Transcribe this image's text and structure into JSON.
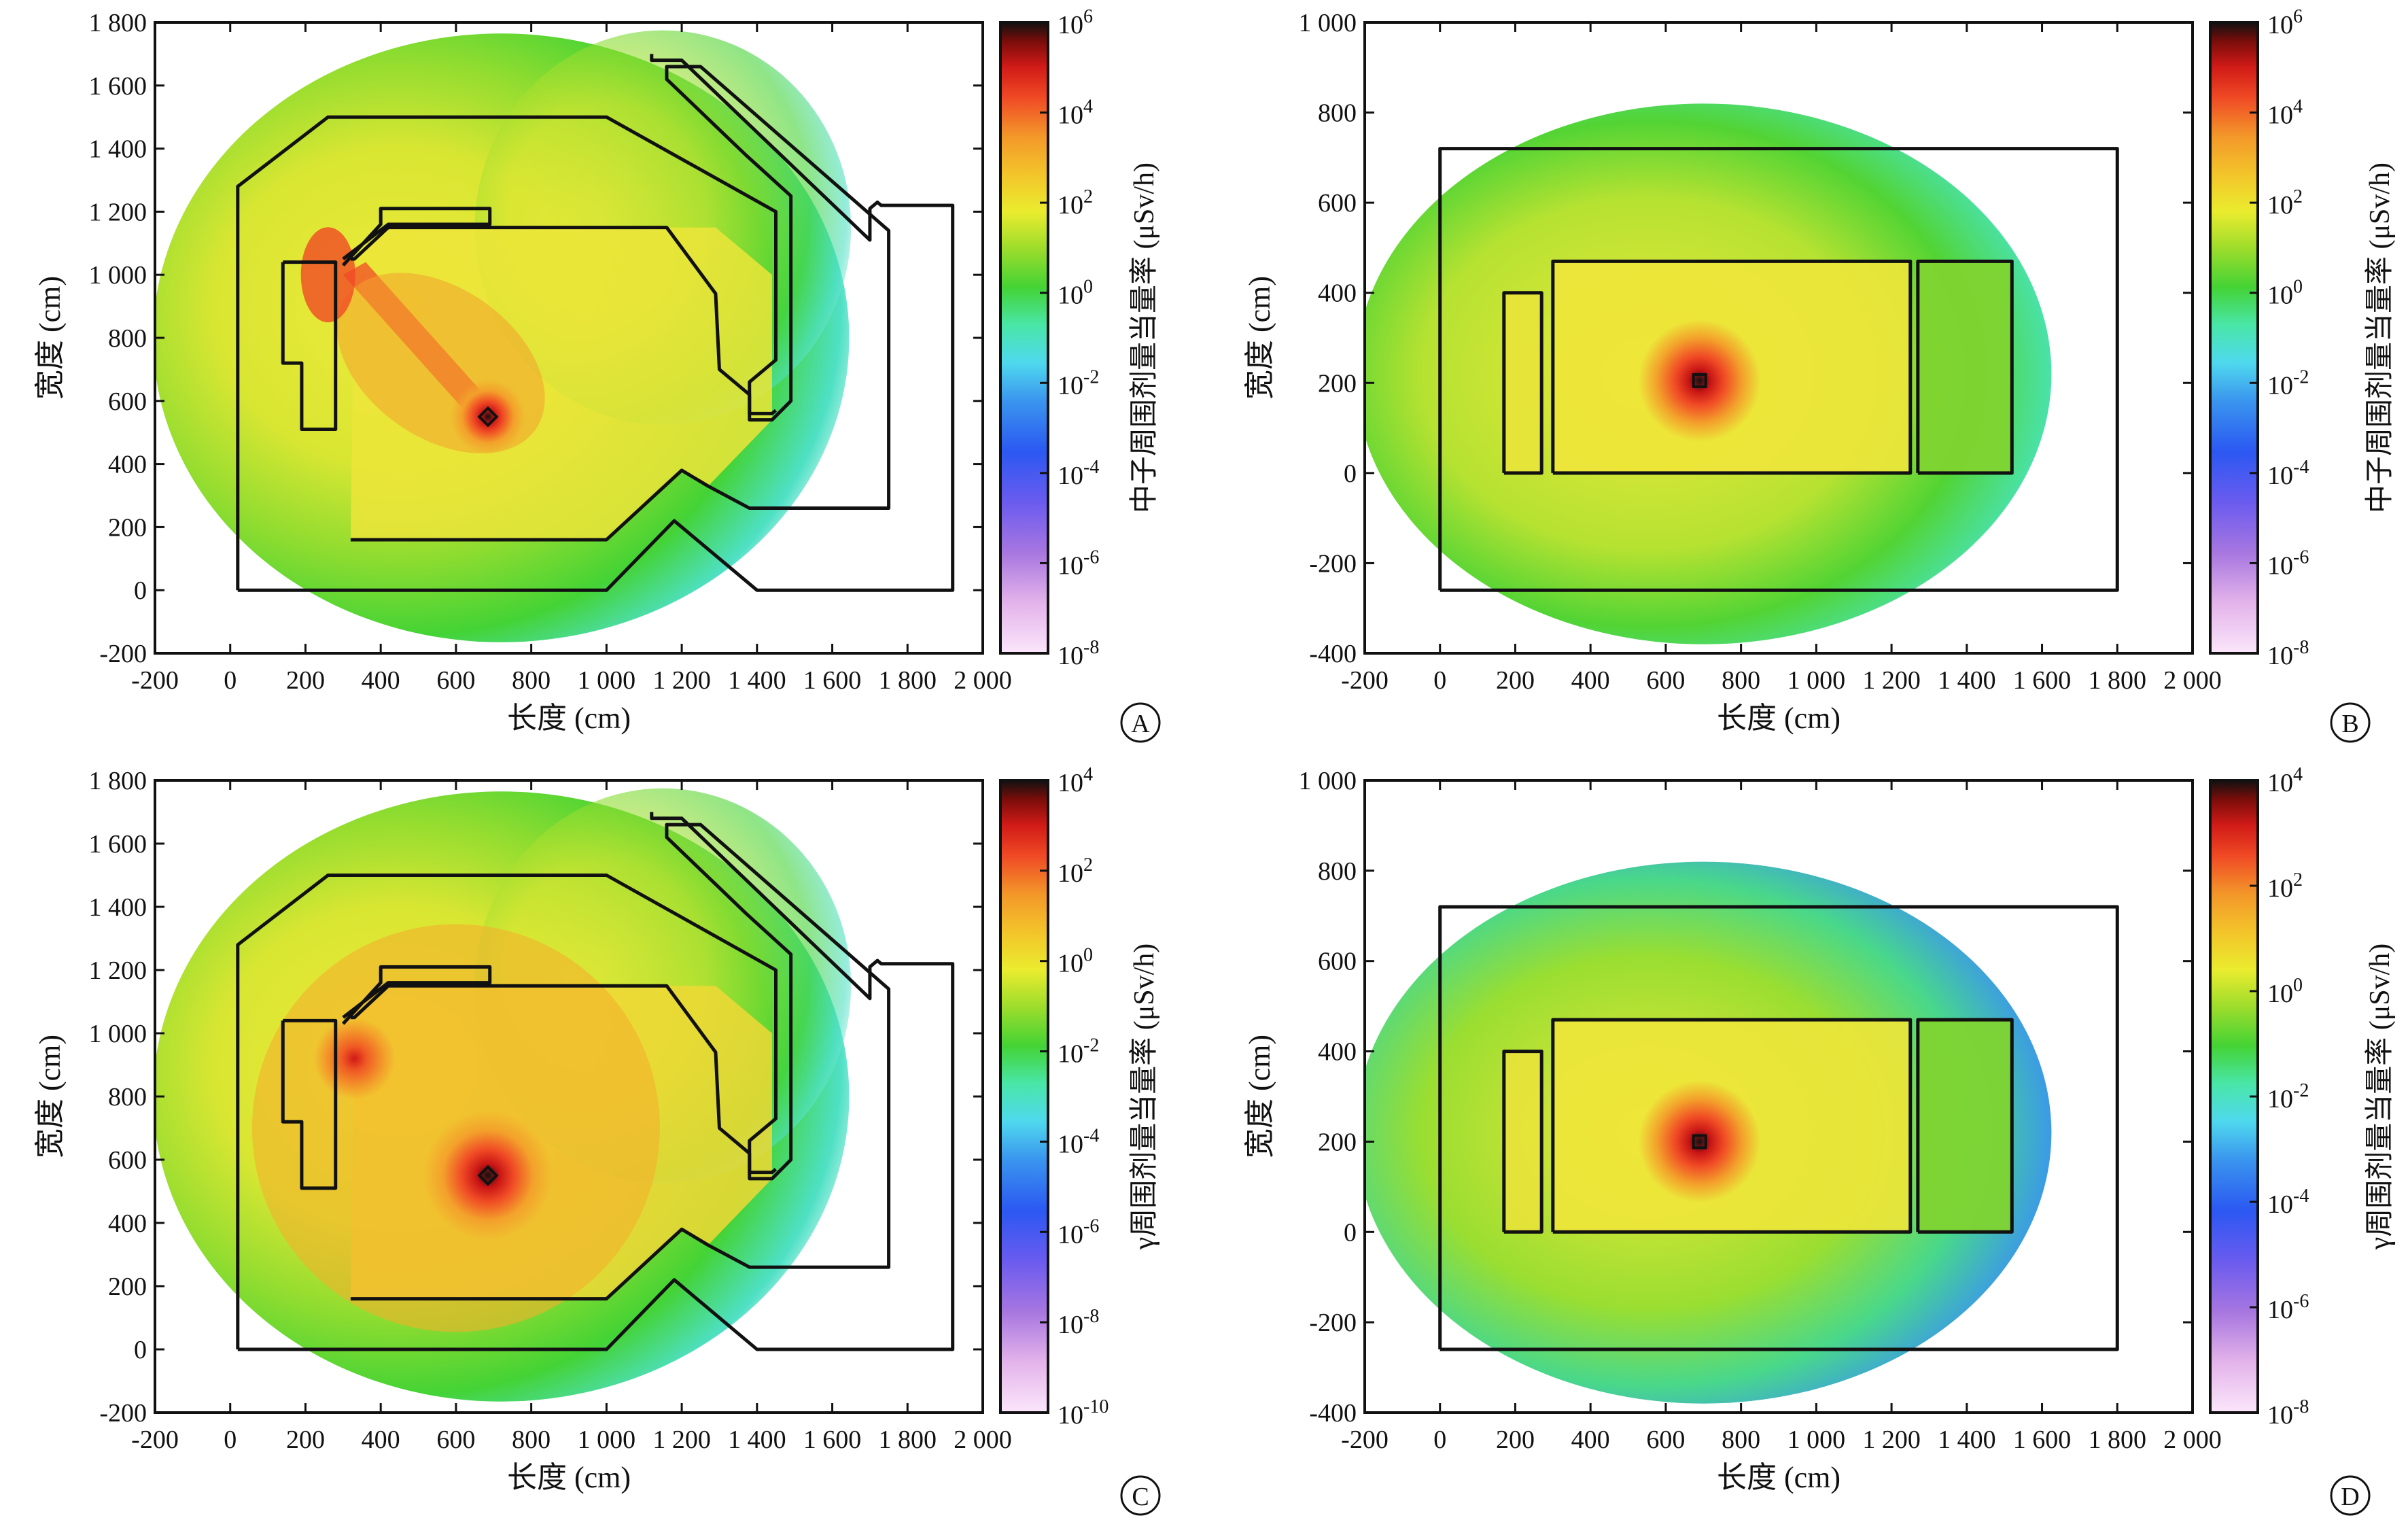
{
  "chart_data": [
    {
      "id": "A",
      "type": "heatmap",
      "panel_label": "A",
      "xlabel": "长度 (cm)",
      "ylabel": "宽度 (cm)",
      "xlim": [
        -200,
        2000
      ],
      "ylim": [
        -200,
        1800
      ],
      "xticks": [
        -200,
        0,
        200,
        400,
        600,
        800,
        1000,
        1200,
        1400,
        1600,
        1800,
        2000
      ],
      "xtick_labels": [
        "-200",
        "0",
        "200",
        "400",
        "600",
        "800",
        "1 000",
        "1 200",
        "1 400",
        "1 600",
        "1 800",
        "2 000"
      ],
      "yticks": [
        -200,
        0,
        200,
        400,
        600,
        800,
        1000,
        1200,
        1400,
        1600,
        1800
      ],
      "ytick_labels": [
        "-200",
        "0",
        "200",
        "400",
        "600",
        "800",
        "1 000",
        "1 200",
        "1 400",
        "1 600",
        "1 800"
      ],
      "colorbar": {
        "label": "中子周围剂量当量率 (μSv/h)",
        "log_range": [
          -8,
          6
        ],
        "tick_exponents": [
          6,
          4,
          2,
          0,
          -2,
          -4,
          -6,
          -8
        ]
      },
      "source_point": [
        685,
        550
      ],
      "hotspots": []
    },
    {
      "id": "B",
      "type": "heatmap",
      "panel_label": "B",
      "xlabel": "长度 (cm)",
      "ylabel": "宽度 (cm)",
      "xlim": [
        -200,
        2000
      ],
      "ylim": [
        -400,
        1000
      ],
      "xticks": [
        -200,
        0,
        200,
        400,
        600,
        800,
        1000,
        1200,
        1400,
        1600,
        1800,
        2000
      ],
      "xtick_labels": [
        "-200",
        "0",
        "200",
        "400",
        "600",
        "800",
        "1 000",
        "1 200",
        "1 400",
        "1 600",
        "1 800",
        "2 000"
      ],
      "yticks": [
        -400,
        -200,
        0,
        200,
        400,
        600,
        800,
        1000
      ],
      "ytick_labels": [
        "-400",
        "-200",
        "0",
        "200",
        "400",
        "600",
        "800",
        "1 000"
      ],
      "colorbar": {
        "label": "中子周围剂量当量率 (μSv/h)",
        "log_range": [
          -8,
          6
        ],
        "tick_exponents": [
          6,
          4,
          2,
          0,
          -2,
          -4,
          -6,
          -8
        ]
      },
      "source_point": [
        690,
        205
      ],
      "hotspots": []
    },
    {
      "id": "C",
      "type": "heatmap",
      "panel_label": "C",
      "xlabel": "长度 (cm)",
      "ylabel": "宽度 (cm)",
      "xlim": [
        -200,
        2000
      ],
      "ylim": [
        -200,
        1800
      ],
      "xticks": [
        -200,
        0,
        200,
        400,
        600,
        800,
        1000,
        1200,
        1400,
        1600,
        1800,
        2000
      ],
      "xtick_labels": [
        "-200",
        "0",
        "200",
        "400",
        "600",
        "800",
        "1 000",
        "1 200",
        "1 400",
        "1 600",
        "1 800",
        "2 000"
      ],
      "yticks": [
        -200,
        0,
        200,
        400,
        600,
        800,
        1000,
        1200,
        1400,
        1600,
        1800
      ],
      "ytick_labels": [
        "-200",
        "0",
        "200",
        "400",
        "600",
        "800",
        "1 000",
        "1 200",
        "1 400",
        "1 600",
        "1 800"
      ],
      "colorbar": {
        "label": "γ周围剂量当量率 (μSv/h)",
        "log_range": [
          -10,
          4
        ],
        "tick_exponents": [
          4,
          2,
          0,
          -2,
          -4,
          -6,
          -8,
          -10
        ]
      },
      "source_point": [
        685,
        550
      ],
      "hotspots": [
        [
          330,
          920
        ]
      ]
    },
    {
      "id": "D",
      "type": "heatmap",
      "panel_label": "D",
      "xlabel": "长度 (cm)",
      "ylabel": "宽度 (cm)",
      "xlim": [
        -200,
        2000
      ],
      "ylim": [
        -400,
        1000
      ],
      "xticks": [
        -200,
        0,
        200,
        400,
        600,
        800,
        1000,
        1200,
        1400,
        1600,
        1800,
        2000
      ],
      "xtick_labels": [
        "-200",
        "0",
        "200",
        "400",
        "600",
        "800",
        "1 000",
        "1 200",
        "1 400",
        "1 600",
        "1 800",
        "2 000"
      ],
      "yticks": [
        -400,
        -200,
        0,
        200,
        400,
        600,
        800,
        1000
      ],
      "ytick_labels": [
        "-400",
        "-200",
        "0",
        "200",
        "400",
        "600",
        "800",
        "1 000"
      ],
      "colorbar": {
        "label": "γ周围剂量当量率 (μSv/h)",
        "log_range": [
          -8,
          4
        ],
        "tick_exponents": [
          4,
          2,
          0,
          -2,
          -4,
          -6,
          -8
        ]
      },
      "source_point": [
        690,
        200
      ],
      "hotspots": []
    }
  ]
}
